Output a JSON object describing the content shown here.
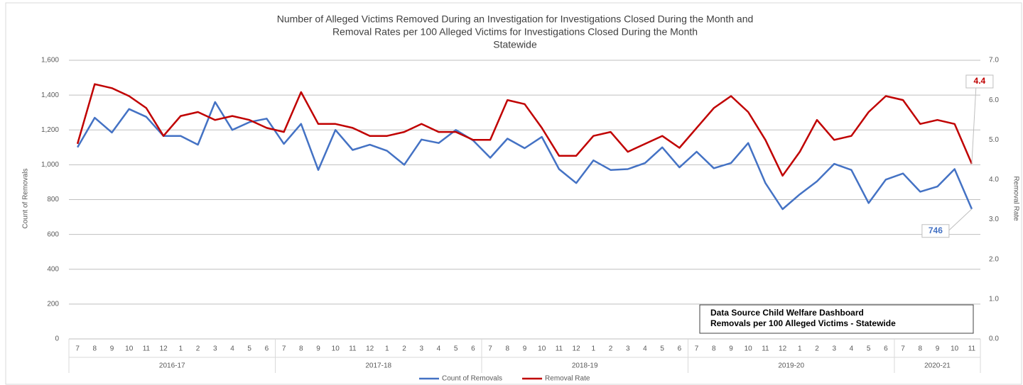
{
  "chart_data": {
    "type": "line",
    "title": [
      "Number of Alleged  Victims Removed During an Investigation for Investigations Closed During the Month and",
      "Removal Rates per 100 Alleged Victims for Investigations Closed During the Month",
      "Statewide"
    ],
    "y_label": "Count of Removals",
    "y2_label": "Removal Rate",
    "category_groups": [
      {
        "label": "2016-17",
        "categories": [
          "7",
          "8",
          "9",
          "10",
          "11",
          "12",
          "1",
          "2",
          "3",
          "4",
          "5",
          "6"
        ]
      },
      {
        "label": "2017-18",
        "categories": [
          "7",
          "8",
          "9",
          "10",
          "11",
          "12",
          "1",
          "2",
          "3",
          "4",
          "5",
          "6"
        ]
      },
      {
        "label": "2018-19",
        "categories": [
          "7",
          "8",
          "9",
          "10",
          "11",
          "12",
          "1",
          "2",
          "3",
          "4",
          "5",
          "6"
        ]
      },
      {
        "label": "2019-20",
        "categories": [
          "7",
          "8",
          "9",
          "10",
          "11",
          "12",
          "1",
          "2",
          "3",
          "4",
          "5",
          "6"
        ]
      },
      {
        "label": "2020-21",
        "categories": [
          "7",
          "8",
          "9",
          "10",
          "11"
        ]
      }
    ],
    "series": [
      {
        "name": "Count of Removals",
        "color": "#4472c4",
        "axis": "y",
        "values": [
          1100,
          1270,
          1185,
          1320,
          1275,
          1165,
          1165,
          1115,
          1360,
          1200,
          1245,
          1265,
          1120,
          1235,
          970,
          1200,
          1085,
          1115,
          1080,
          1000,
          1145,
          1125,
          1200,
          1140,
          1040,
          1150,
          1095,
          1160,
          975,
          895,
          1025,
          970,
          975,
          1010,
          1100,
          985,
          1075,
          980,
          1010,
          1125,
          895,
          745,
          830,
          905,
          1005,
          970,
          780,
          915,
          950,
          845,
          875,
          975,
          746
        ]
      },
      {
        "name": "Removal Rate",
        "color": "#c00000",
        "axis": "y2",
        "values": [
          4.9,
          6.4,
          6.3,
          6.1,
          5.8,
          5.1,
          5.6,
          5.7,
          5.5,
          5.6,
          5.5,
          5.3,
          5.2,
          6.2,
          5.4,
          5.4,
          5.3,
          5.1,
          5.1,
          5.2,
          5.4,
          5.2,
          5.2,
          5.0,
          5.0,
          6.0,
          5.9,
          5.3,
          4.6,
          4.6,
          5.1,
          5.2,
          4.7,
          4.9,
          5.1,
          4.8,
          5.3,
          5.8,
          6.1,
          5.7,
          5.0,
          4.1,
          4.7,
          5.5,
          5.0,
          5.1,
          5.7,
          6.1,
          6.0,
          5.4,
          5.5,
          5.4,
          4.4
        ]
      }
    ],
    "ylim": [
      0,
      1600
    ],
    "yticks": [
      0,
      200,
      400,
      600,
      800,
      {
        "value": 1000,
        "label": "1,000"
      },
      {
        "value": 1200,
        "label": "1,200"
      },
      {
        "value": 1400,
        "label": "1,400"
      },
      {
        "value": 1600,
        "label": "1,600"
      }
    ],
    "y2lim": [
      0,
      7
    ],
    "y2ticks": [
      {
        "value": 0,
        "label": "0.0"
      },
      {
        "value": 1,
        "label": "1.0"
      },
      {
        "value": 2,
        "label": "2.0"
      },
      {
        "value": 3,
        "label": "3.0"
      },
      {
        "value": 4,
        "label": "4.0"
      },
      {
        "value": 5,
        "label": "5.0"
      },
      {
        "value": 6,
        "label": "6.0"
      },
      {
        "value": 7,
        "label": "7.0"
      }
    ],
    "grid": true,
    "legend": "bottom",
    "annotations": [
      "Data Source Child Welfare Dashboard",
      "Removals per 100 Alleged Victims - Statewide"
    ]
  }
}
